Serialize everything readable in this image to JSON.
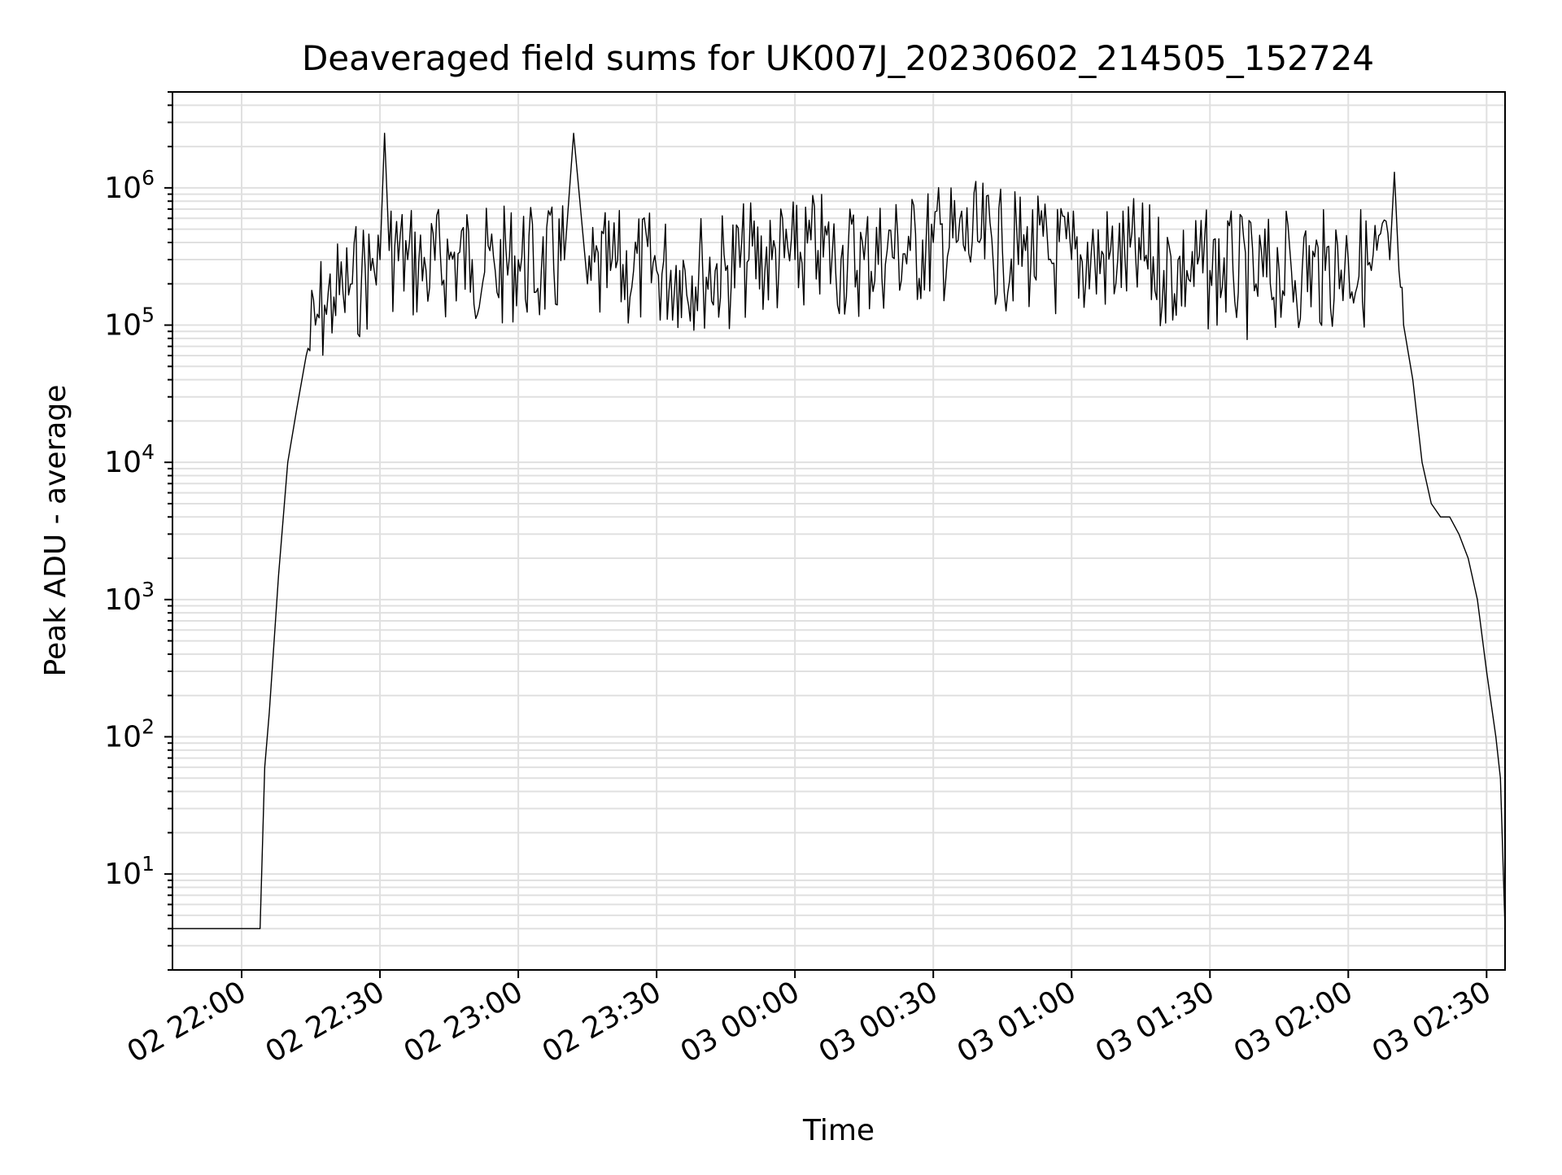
{
  "chart_data": {
    "type": "line",
    "title": "Deaveraged field sums for UK007J_20230602_214505_152724",
    "xlabel": "Time",
    "ylabel": "Peak ADU - average",
    "yscale": "log",
    "ylim": [
      2,
      5000000
    ],
    "xlim": [
      "2023-06-02 21:45",
      "2023-06-03 02:34"
    ],
    "grid": true,
    "line_color": "#000000",
    "grid_color": "#e0e0e0",
    "x_ticks": [
      {
        "value": "2023-06-02 22:00",
        "label": "02 22:00"
      },
      {
        "value": "2023-06-02 22:30",
        "label": "02 22:30"
      },
      {
        "value": "2023-06-02 23:00",
        "label": "02 23:00"
      },
      {
        "value": "2023-06-02 23:30",
        "label": "02 23:30"
      },
      {
        "value": "2023-06-03 00:00",
        "label": "03 00:00"
      },
      {
        "value": "2023-06-03 00:30",
        "label": "03 00:30"
      },
      {
        "value": "2023-06-03 01:00",
        "label": "03 01:00"
      },
      {
        "value": "2023-06-03 01:30",
        "label": "03 01:30"
      },
      {
        "value": "2023-06-03 02:00",
        "label": "03 02:00"
      },
      {
        "value": "2023-06-03 02:30",
        "label": "03 02:30"
      }
    ],
    "y_ticks": [
      {
        "value": 10,
        "base": "10",
        "exp": "1"
      },
      {
        "value": 100,
        "base": "10",
        "exp": "2"
      },
      {
        "value": 1000,
        "base": "10",
        "exp": "3"
      },
      {
        "value": 10000,
        "base": "10",
        "exp": "4"
      },
      {
        "value": 100000,
        "base": "10",
        "exp": "5"
      },
      {
        "value": 1000000,
        "base": "10",
        "exp": "6"
      }
    ],
    "series": [
      {
        "x": [
          "2023-06-02 21:45",
          "2023-06-02 21:50",
          "2023-06-02 21:55",
          "2023-06-02 22:00",
          "2023-06-02 22:04",
          "2023-06-02 22:05",
          "2023-06-02 22:06",
          "2023-06-02 22:08",
          "2023-06-02 22:10",
          "2023-06-02 22:12",
          "2023-06-02 22:14",
          "2023-06-02 22:16",
          "2023-06-02 22:18",
          "2023-06-02 22:20",
          "2023-06-02 22:22",
          "2023-06-02 22:24",
          "2023-06-02 22:26",
          "2023-06-02 22:28",
          "2023-06-02 22:30",
          "2023-06-02 22:31",
          "2023-06-02 22:32",
          "2023-06-02 22:36",
          "2023-06-02 22:40",
          "2023-06-02 22:45",
          "2023-06-02 22:50",
          "2023-06-02 22:55",
          "2023-06-02 23:00",
          "2023-06-02 23:05",
          "2023-06-02 23:10",
          "2023-06-02 23:12",
          "2023-06-02 23:15",
          "2023-06-02 23:20",
          "2023-06-02 23:25",
          "2023-06-02 23:30",
          "2023-06-02 23:35",
          "2023-06-02 23:40",
          "2023-06-02 23:45",
          "2023-06-02 23:50",
          "2023-06-02 23:55",
          "2023-06-03 00:00",
          "2023-06-03 00:05",
          "2023-06-03 00:10",
          "2023-06-03 00:15",
          "2023-06-03 00:20",
          "2023-06-03 00:25",
          "2023-06-03 00:30",
          "2023-06-03 00:35",
          "2023-06-03 00:40",
          "2023-06-03 00:45",
          "2023-06-03 00:50",
          "2023-06-03 00:55",
          "2023-06-03 01:00",
          "2023-06-03 01:05",
          "2023-06-03 01:10",
          "2023-06-03 01:15",
          "2023-06-03 01:20",
          "2023-06-03 01:25",
          "2023-06-03 01:30",
          "2023-06-03 01:35",
          "2023-06-03 01:40",
          "2023-06-03 01:45",
          "2023-06-03 01:50",
          "2023-06-03 01:55",
          "2023-06-03 02:00",
          "2023-06-03 02:05",
          "2023-06-03 02:09",
          "2023-06-03 02:10",
          "2023-06-03 02:11",
          "2023-06-03 02:12",
          "2023-06-03 02:14",
          "2023-06-03 02:16",
          "2023-06-03 02:18",
          "2023-06-03 02:20",
          "2023-06-03 02:22",
          "2023-06-03 02:24",
          "2023-06-03 02:26",
          "2023-06-03 02:28",
          "2023-06-03 02:30",
          "2023-06-03 02:32",
          "2023-06-03 02:33",
          "2023-06-03 02:34"
        ],
        "y": [
          4,
          4,
          4,
          4,
          4,
          60,
          150,
          1500,
          10000,
          25000,
          60000,
          100000,
          140000,
          160000,
          170000,
          200000,
          220000,
          250000,
          300000,
          2500000,
          350000,
          300000,
          250000,
          300000,
          300000,
          250000,
          300000,
          250000,
          300000,
          2500000,
          200000,
          250000,
          250000,
          250000,
          250000,
          250000,
          250000,
          300000,
          300000,
          300000,
          350000,
          300000,
          300000,
          350000,
          350000,
          400000,
          400000,
          400000,
          350000,
          350000,
          300000,
          300000,
          300000,
          300000,
          300000,
          250000,
          250000,
          250000,
          250000,
          200000,
          250000,
          250000,
          250000,
          300000,
          250000,
          300000,
          1300000,
          250000,
          100000,
          40000,
          10000,
          5000,
          4000,
          4000,
          3000,
          2000,
          1000,
          300,
          100,
          50,
          4
        ]
      }
    ]
  }
}
